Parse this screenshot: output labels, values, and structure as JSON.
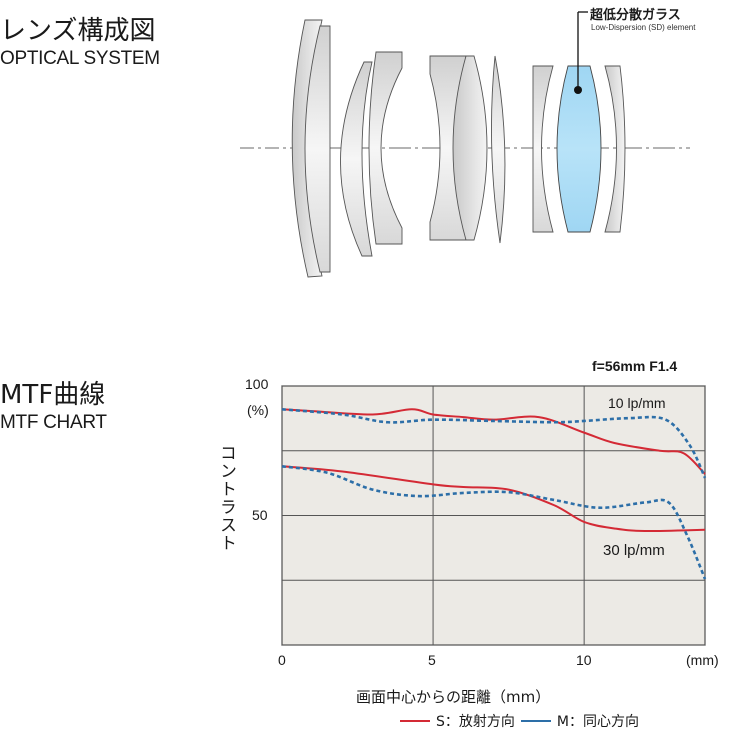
{
  "optical": {
    "title_jp": "レンズ構成図",
    "title_en": "OPTICAL SYSTEM",
    "callout": {
      "label_jp": "超低分散ガラス",
      "label_en": "Low-Dispersion (SD) element",
      "highlight_color": "#a8dcf5"
    }
  },
  "mtf": {
    "title_jp": "MTF曲線",
    "title_en": "MTF CHART",
    "spec": "f=56mm F1.4",
    "y_unit": "(%)",
    "y_label": "コントラスト",
    "x_label": "画面中心からの距離（mm）",
    "x_unit": "(mm)",
    "series_labels": {
      "low": "10 lp/mm",
      "high": "30 lp/mm"
    },
    "legend": [
      {
        "label": "S：放射方向",
        "color": "#d42a35"
      },
      {
        "label": "M：同心方向",
        "color": "#2d6fa8"
      }
    ]
  },
  "chart_data": {
    "type": "line",
    "title": "f=56mm F1.4",
    "xlabel": "画面中心からの距離（mm）",
    "ylabel": "コントラスト (%)",
    "xlim": [
      0,
      14
    ],
    "ylim": [
      0,
      100
    ],
    "x_ticks": [
      "0",
      "5",
      "10",
      "(mm)"
    ],
    "y_ticks": [
      "100",
      "50"
    ],
    "grid": true,
    "grid_y": [
      0,
      25,
      50,
      75,
      100
    ],
    "grid_x": [
      0,
      5,
      10,
      14
    ],
    "background": "#eceae5",
    "series": [
      {
        "name": "10 lp/mm S (放射方向)",
        "color": "#d42a35",
        "style": "solid",
        "x": [
          0,
          1,
          3,
          4.3,
          5,
          6,
          7,
          8.5,
          10,
          11,
          12.5,
          13.3,
          14
        ],
        "values": [
          91,
          90.3,
          89,
          91,
          89,
          88,
          87,
          88,
          82,
          78,
          75,
          74,
          66
        ]
      },
      {
        "name": "10 lp/mm M (同心方向)",
        "color": "#2d6fa8",
        "style": "dashed",
        "x": [
          0,
          2,
          3.5,
          5,
          7,
          9,
          10,
          11.5,
          12.7,
          13.5,
          14
        ],
        "values": [
          91,
          89,
          86,
          87,
          86.5,
          86,
          86.5,
          87.6,
          87,
          77,
          64.5
        ]
      },
      {
        "name": "30 lp/mm S (放射方向)",
        "color": "#d42a35",
        "style": "solid",
        "x": [
          0,
          2,
          5,
          6,
          7.5,
          9,
          10,
          11,
          12,
          14
        ],
        "values": [
          69,
          67,
          62,
          61,
          60,
          54,
          47.5,
          45,
          44,
          44.5
        ]
      },
      {
        "name": "30 lp/mm M (同心方向)",
        "color": "#2d6fa8",
        "style": "dashed",
        "x": [
          0,
          1.5,
          3,
          4.5,
          6,
          7.5,
          9,
          10.5,
          12,
          12.8,
          13.4,
          14
        ],
        "values": [
          69,
          66.5,
          60,
          57.5,
          58.7,
          59,
          56,
          53,
          55,
          55,
          42.5,
          25.5
        ]
      }
    ],
    "annotations": [
      "10 lp/mm",
      "30 lp/mm",
      "f=56mm F1.4"
    ],
    "legend": [
      {
        "label": "S：放射方向",
        "color": "#d42a35"
      },
      {
        "label": "M：同心方向",
        "color": "#2d6fa8"
      }
    ],
    "legend_position": "bottom"
  }
}
